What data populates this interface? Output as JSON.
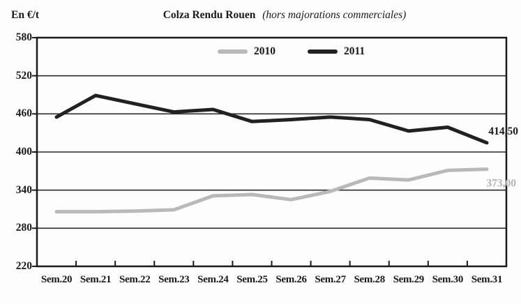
{
  "chart_data": {
    "type": "line",
    "title": "Colza Rendu Rouen",
    "subtitle": "(hors majorations commerciales)",
    "unit_label": "En €/t",
    "categories": [
      "Sem.20",
      "Sem.21",
      "Sem.22",
      "Sem.23",
      "Sem.24",
      "Sem.25",
      "Sem.26",
      "Sem.27",
      "Sem.28",
      "Sem.29",
      "Sem.30",
      "Sem.31"
    ],
    "xlabel": "",
    "ylabel": "En €/t",
    "ylim": [
      220,
      580
    ],
    "y_ticks": [
      580,
      520,
      460,
      400,
      340,
      280,
      220
    ],
    "grid": "horizontal",
    "legend_position": "top-center-inside",
    "axis_color": "#1a1a1a",
    "gridline_color": "#2b2b2b",
    "series": [
      {
        "name": "2010",
        "color": "#b9b9b9",
        "label_color": "#b3b3b3",
        "values": [
          306,
          306,
          307,
          309,
          331,
          333,
          325,
          338,
          359,
          356,
          371,
          373
        ],
        "end_label": "373,00"
      },
      {
        "name": "2011",
        "color": "#212121",
        "label_color": "#1a1a1a",
        "values": [
          455,
          489,
          476,
          463,
          467,
          448,
          451,
          455,
          451,
          433,
          439,
          414.5
        ],
        "end_label": "414,50"
      }
    ]
  }
}
